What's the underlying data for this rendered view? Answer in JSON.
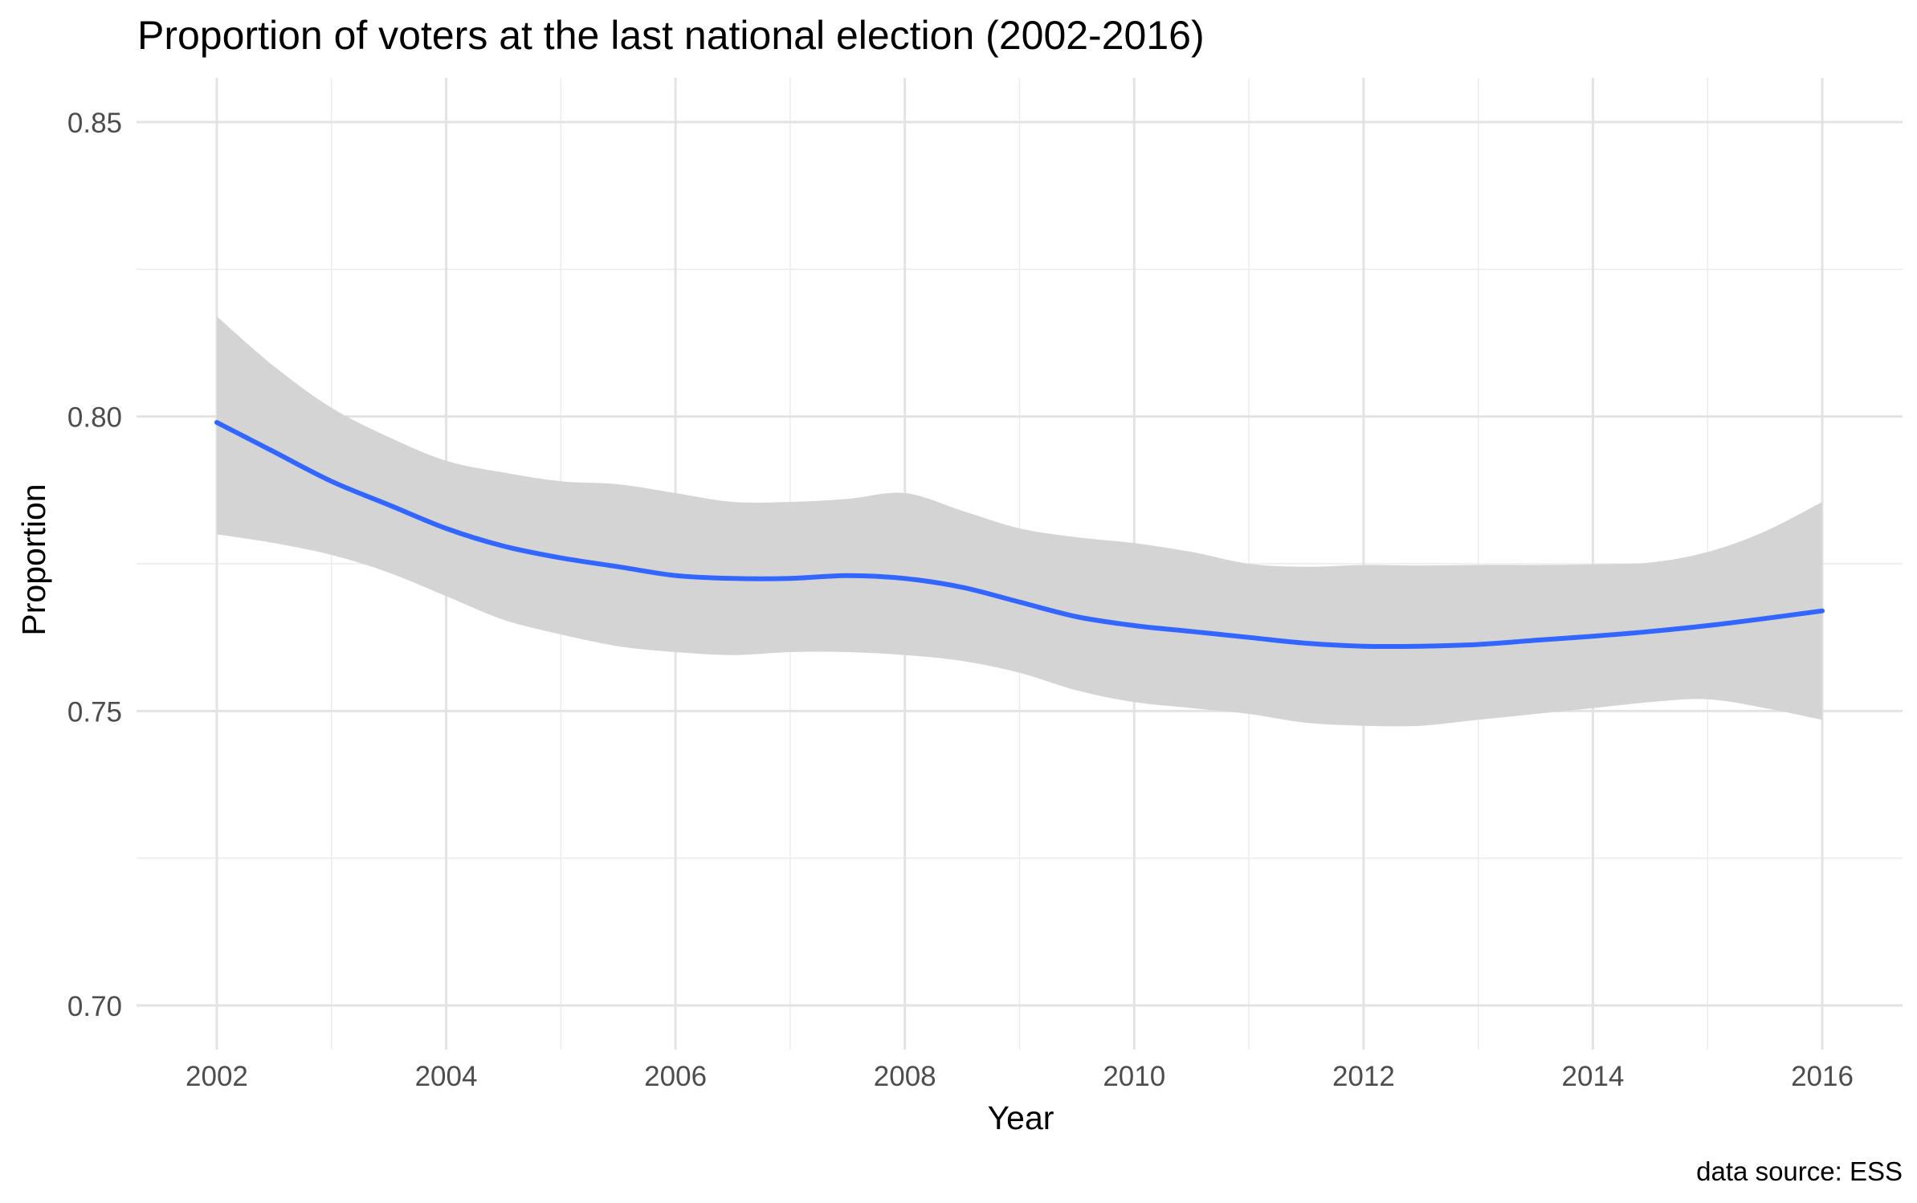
{
  "chart_data": {
    "type": "line",
    "title": "Proportion of voters at the last national election (2002-2016)",
    "xlabel": "Year",
    "ylabel": "Proportion",
    "caption": "data source: ESS",
    "xlim": [
      2001.3,
      2016.7
    ],
    "ylim": [
      0.6925,
      0.8575
    ],
    "x_ticks": [
      2002,
      2004,
      2006,
      2008,
      2010,
      2012,
      2014,
      2016
    ],
    "x_tick_labels": [
      "2002",
      "2004",
      "2006",
      "2008",
      "2010",
      "2012",
      "2014",
      "2016"
    ],
    "y_ticks": [
      0.7,
      0.75,
      0.8,
      0.85
    ],
    "y_tick_labels": [
      "0.70",
      "0.75",
      "0.80",
      "0.85"
    ],
    "grid": true,
    "series": [
      {
        "kind": "smooth",
        "color": "#3366ff",
        "ribbon_color": "#d4d4d4",
        "x": [
          2002,
          2002.5,
          2003,
          2003.5,
          2004,
          2004.5,
          2005,
          2005.5,
          2006,
          2006.5,
          2007,
          2007.5,
          2008,
          2008.5,
          2009,
          2009.5,
          2010,
          2010.5,
          2011,
          2011.5,
          2012,
          2012.5,
          2013,
          2013.5,
          2014,
          2014.5,
          2015,
          2015.5,
          2016
        ],
        "y": [
          0.799,
          0.794,
          0.789,
          0.785,
          0.781,
          0.778,
          0.776,
          0.7745,
          0.773,
          0.7725,
          0.7725,
          0.773,
          0.7725,
          0.771,
          0.7685,
          0.766,
          0.7645,
          0.7635,
          0.7625,
          0.7615,
          0.761,
          0.761,
          0.7613,
          0.762,
          0.7627,
          0.7635,
          0.7645,
          0.7657,
          0.767
        ],
        "ymin": [
          0.78,
          0.7785,
          0.7765,
          0.7735,
          0.7695,
          0.7655,
          0.763,
          0.761,
          0.76,
          0.7595,
          0.76,
          0.76,
          0.7595,
          0.7585,
          0.7565,
          0.7535,
          0.7515,
          0.7505,
          0.7495,
          0.748,
          0.7475,
          0.7475,
          0.7485,
          0.7495,
          0.7505,
          0.7515,
          0.752,
          0.7505,
          0.7485
        ],
        "ymax": [
          0.817,
          0.8085,
          0.8015,
          0.7965,
          0.7925,
          0.7905,
          0.789,
          0.7885,
          0.787,
          0.7855,
          0.7855,
          0.786,
          0.787,
          0.784,
          0.781,
          0.7795,
          0.7785,
          0.777,
          0.775,
          0.7745,
          0.7748,
          0.7747,
          0.7748,
          0.7748,
          0.7749,
          0.7752,
          0.777,
          0.7805,
          0.7855
        ]
      }
    ]
  }
}
